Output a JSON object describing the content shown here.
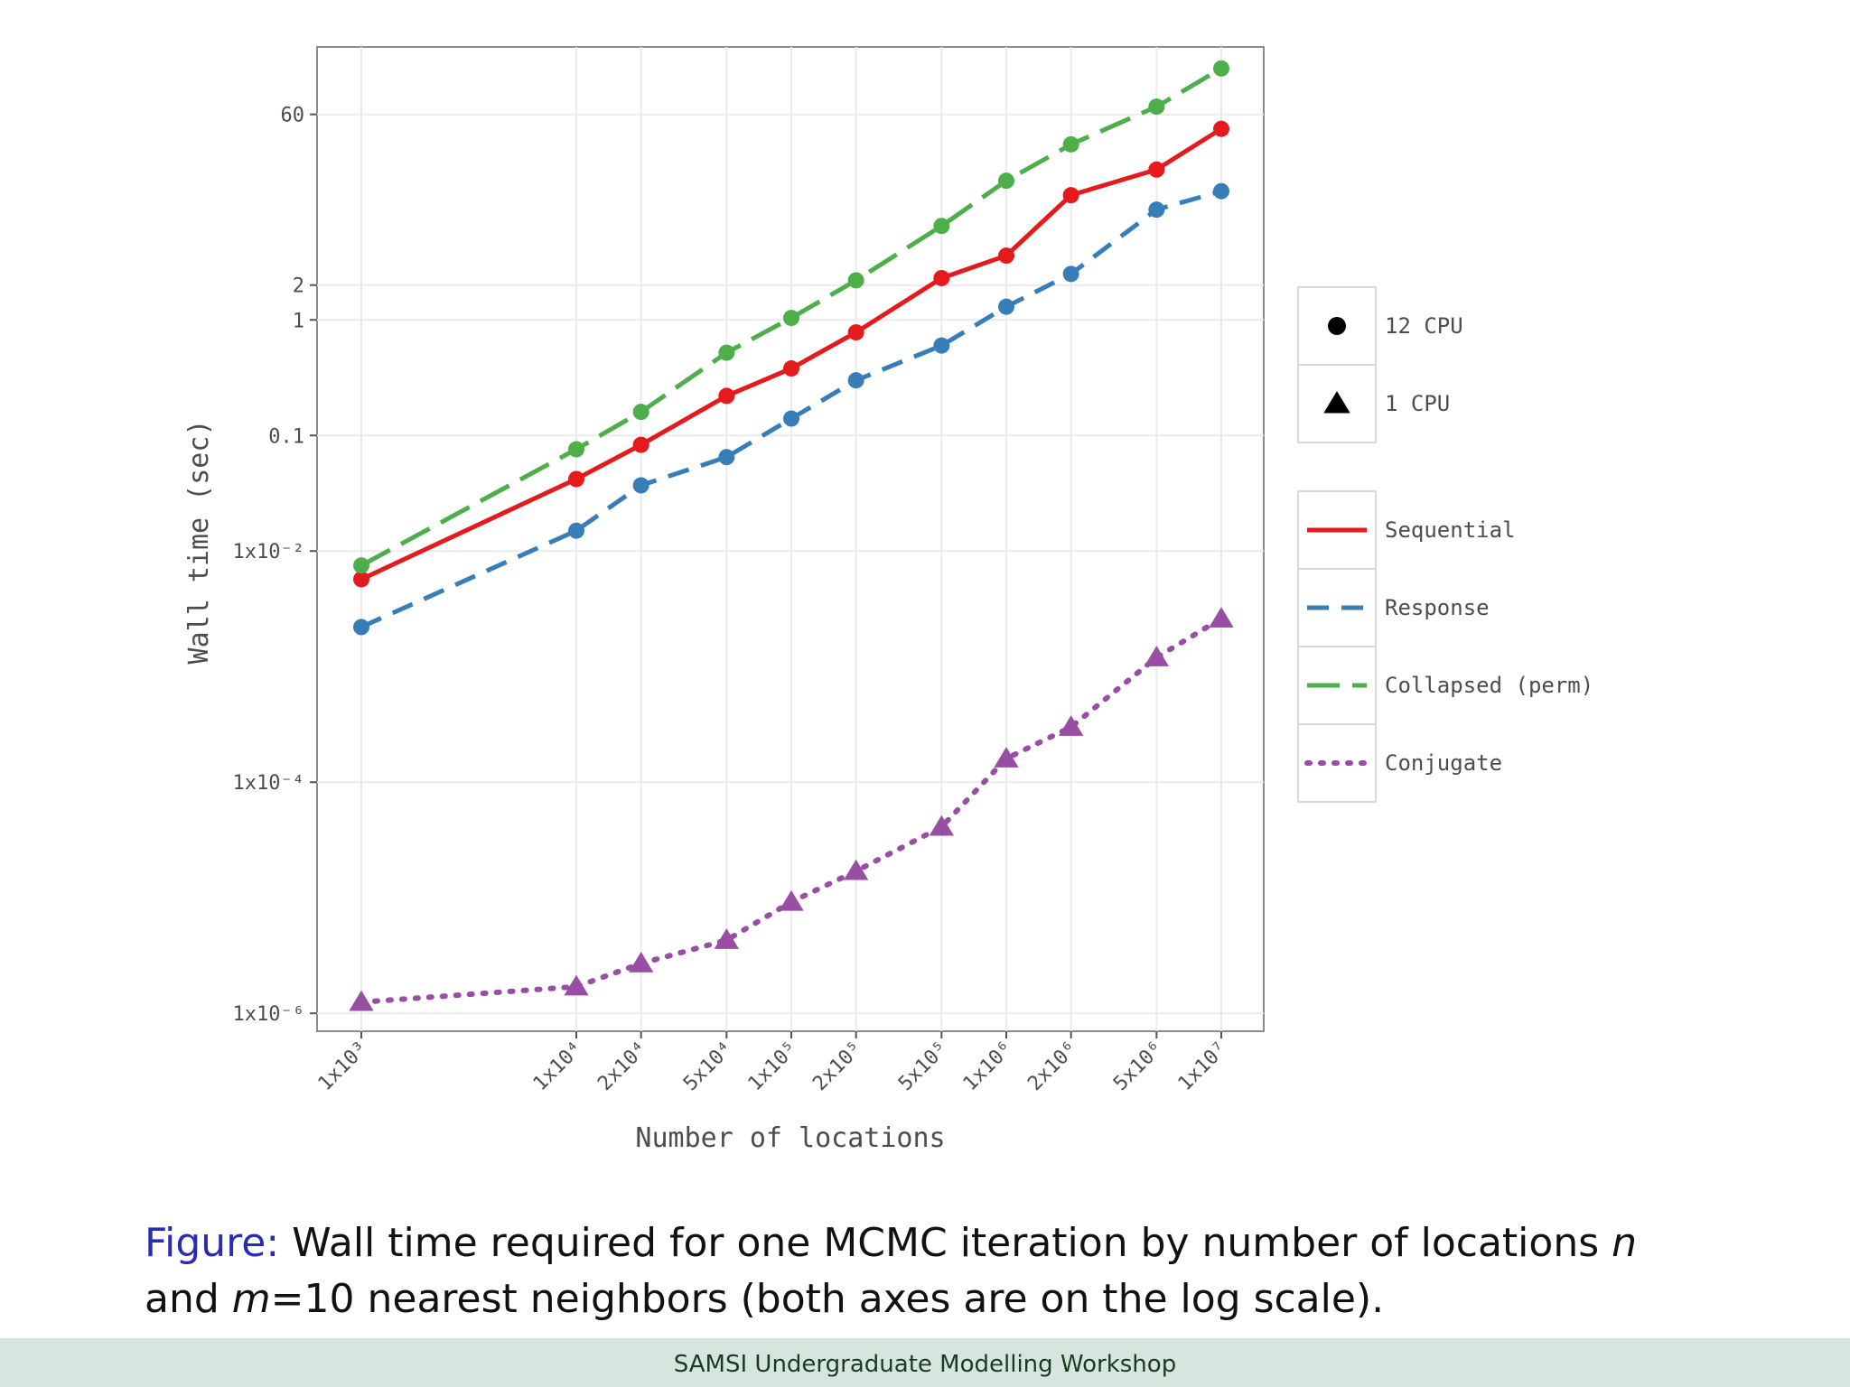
{
  "chart_data": {
    "type": "line",
    "title": "",
    "xlabel": "Number of locations",
    "ylabel": "Wall time (sec)",
    "x_scale": "log",
    "y_scale": "log",
    "x": [
      1000,
      10000,
      20000,
      50000,
      100000,
      200000,
      500000,
      1000000,
      2000000,
      5000000,
      10000000
    ],
    "x_tick_labels": [
      "1x10³",
      "1x10⁴",
      "2x10⁴",
      "5x10⁴",
      "1x10⁵",
      "2x10⁵",
      "5x10⁵",
      "1x10⁶",
      "2x10⁶",
      "5x10⁶",
      "1x10⁷"
    ],
    "y_ticks": [
      {
        "value": 1e-06,
        "label": "1x10⁻⁶"
      },
      {
        "value": 0.0001,
        "label": "1x10⁻⁴"
      },
      {
        "value": 0.01,
        "label": "1x10⁻²"
      },
      {
        "value": 0.1,
        "label": "0.1"
      },
      {
        "value": 1,
        "label": "1"
      },
      {
        "value": 2,
        "label": "2"
      },
      {
        "value": 60,
        "label": "60"
      }
    ],
    "ylim": [
      7e-07,
      230
    ],
    "grid": true,
    "legend_position": "right",
    "shape_legend": [
      {
        "label": "12 CPU",
        "shape": "circle"
      },
      {
        "label": "1 CPU",
        "shape": "triangle"
      }
    ],
    "series": [
      {
        "name": "Sequential",
        "color": "#e41a1c",
        "dash": "solid",
        "marker": "circle",
        "values": [
          0.0057,
          0.042,
          0.083,
          0.22,
          0.38,
          0.78,
          2.3,
          3.6,
          12,
          20,
          45
        ]
      },
      {
        "name": "Response",
        "color": "#377eb8",
        "dash": "dashed",
        "marker": "circle",
        "values": [
          0.0022,
          0.015,
          0.037,
          0.065,
          0.14,
          0.3,
          0.6,
          1.3,
          2.5,
          9,
          13
        ]
      },
      {
        "name": "Collapsed (perm)",
        "color": "#4daf4a",
        "dash": "longdash",
        "marker": "circle",
        "values": [
          0.0075,
          0.076,
          0.16,
          0.52,
          1.04,
          2.2,
          6.5,
          16,
          33,
          70,
          150
        ]
      },
      {
        "name": "Conjugate",
        "color": "#984ea3",
        "dash": "dotted",
        "marker": "triangle",
        "values": [
          1.25e-06,
          1.7e-06,
          2.7e-06,
          4.3e-06,
          9.2e-06,
          1.7e-05,
          4.1e-05,
          0.00016,
          0.0003,
          0.0012,
          0.0026
        ]
      }
    ]
  },
  "caption": {
    "label": "Figure:",
    "text_1": " Wall time required for one MCMC iteration by number of locations ",
    "var_n": "n",
    "text_2": "and ",
    "var_m": "m",
    "text_3": "=10 nearest neighbors (both axes are on the log scale)."
  },
  "footer": {
    "text": "SAMSI Undergraduate Modelling Workshop"
  }
}
